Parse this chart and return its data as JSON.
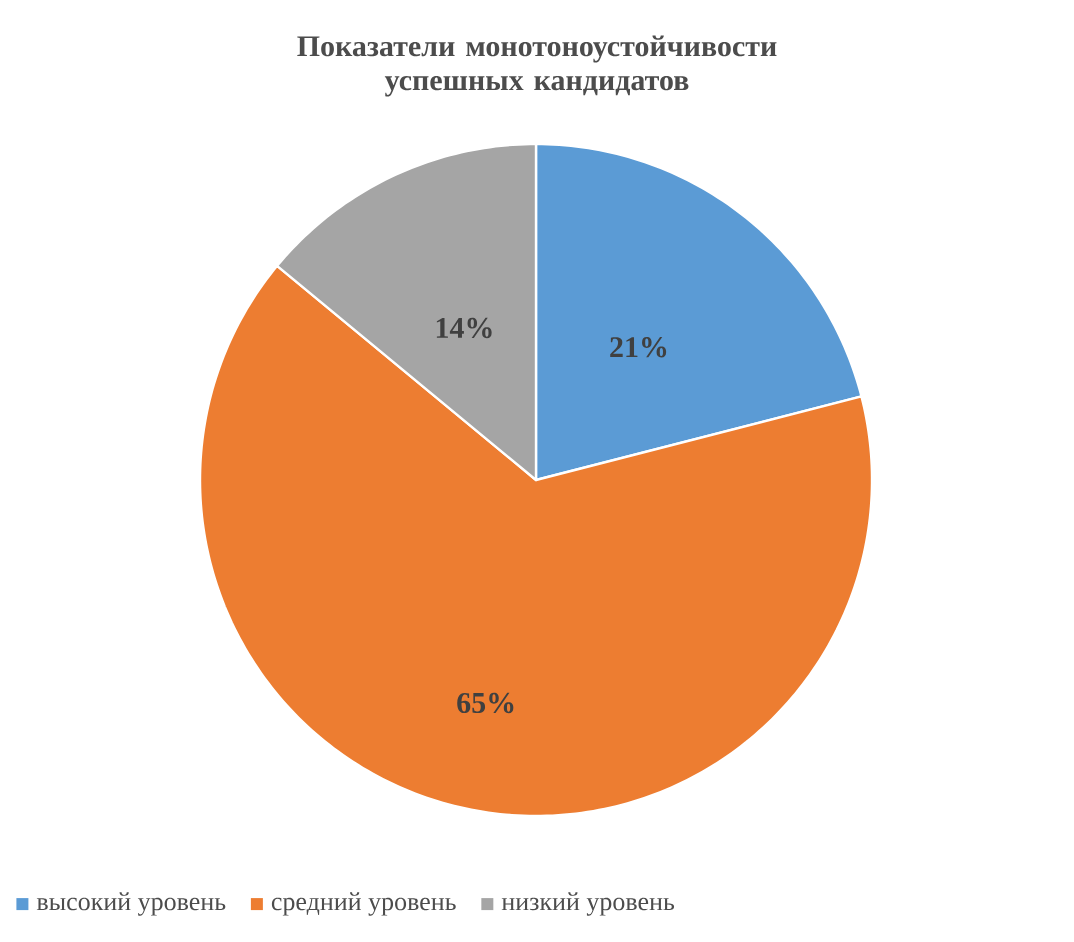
{
  "chart_data": {
    "type": "pie",
    "title": "Показатели монотоноустойчивости успешных кандидатов",
    "categories": [
      "высокий уровень",
      "средний уровень",
      "низкий уровень"
    ],
    "values": [
      21,
      65,
      14
    ],
    "colors": [
      "#5b9bd5",
      "#ed7d31",
      "#a5a5a5"
    ],
    "value_labels": [
      "21%",
      "65%",
      "14%"
    ],
    "legend": "bottom"
  }
}
